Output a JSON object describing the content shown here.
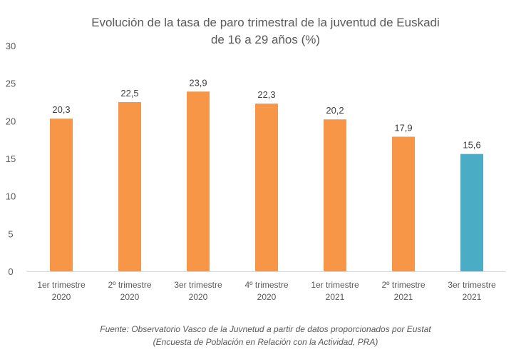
{
  "chart_data": {
    "type": "bar",
    "title_lines": [
      "Evolución de la tasa de paro trimestral de la juventud de Euskadi",
      "de 16 a 29 años (%)"
    ],
    "categories": [
      [
        "1er trimestre",
        "2020"
      ],
      [
        "2º trimestre",
        "2020"
      ],
      [
        "3er trimestre",
        "2020"
      ],
      [
        "4º trimestre",
        "2020"
      ],
      [
        "1er trimestre",
        "2021"
      ],
      [
        "2º trimestre",
        "2021"
      ],
      [
        "3er trimestre",
        "2021"
      ]
    ],
    "values": [
      20.3,
      22.5,
      23.9,
      22.3,
      20.2,
      17.9,
      15.6
    ],
    "data_labels": [
      "20,3",
      "22,5",
      "23,9",
      "22,3",
      "20,2",
      "17,9",
      "15,6"
    ],
    "bar_colors": [
      "#F79646",
      "#F79646",
      "#F79646",
      "#F79646",
      "#F79646",
      "#F79646",
      "#4BACC6"
    ],
    "ylim": [
      0,
      30
    ],
    "yticks": [
      0,
      5,
      10,
      15,
      20,
      25,
      30
    ],
    "grid": false,
    "xlabel": "",
    "ylabel": ""
  },
  "source_lines": [
    "Fuente: Observatorio Vasco de la Juvnetud a partir de datos proporcionados por Eustat",
    "(Encuesta de Población en Relación con la Actividad, PRA)"
  ]
}
